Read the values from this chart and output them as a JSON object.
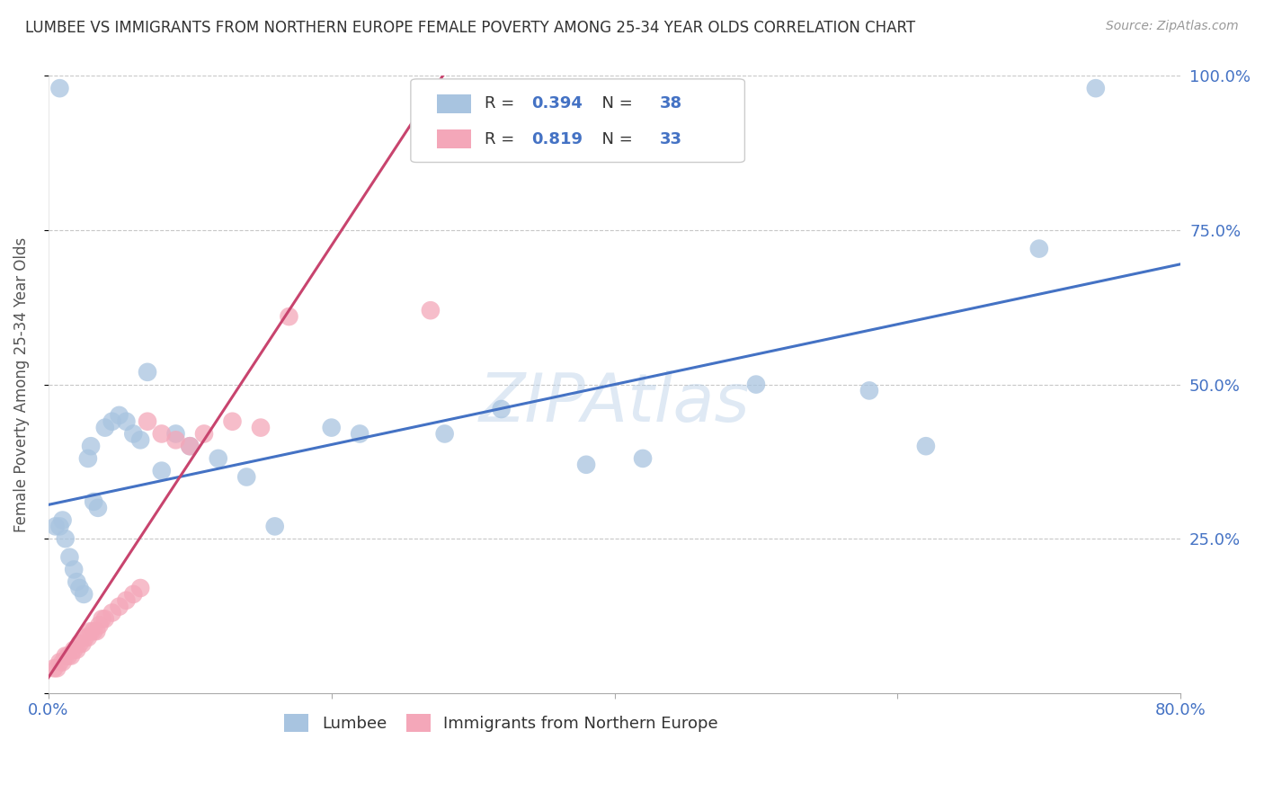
{
  "title": "LUMBEE VS IMMIGRANTS FROM NORTHERN EUROPE FEMALE POVERTY AMONG 25-34 YEAR OLDS CORRELATION CHART",
  "source": "Source: ZipAtlas.com",
  "ylabel": "Female Poverty Among 25-34 Year Olds",
  "xlim": [
    0.0,
    0.8
  ],
  "ylim": [
    0.0,
    1.0
  ],
  "xticks": [
    0.0,
    0.2,
    0.4,
    0.6,
    0.8
  ],
  "xticklabels": [
    "0.0%",
    "",
    "",
    "",
    "80.0%"
  ],
  "yticks": [
    0.0,
    0.25,
    0.5,
    0.75,
    1.0
  ],
  "yticklabels_right": [
    "",
    "25.0%",
    "50.0%",
    "75.0%",
    "100.0%"
  ],
  "series1_color": "#a8c4e0",
  "series2_color": "#f4a7b9",
  "line1_color": "#4472c4",
  "line2_color": "#c8446e",
  "background_color": "#ffffff",
  "grid_color": "#c8c8c8",
  "watermark": "ZIPAtlas",
  "lumbee_x": [
    0.005,
    0.008,
    0.01,
    0.012,
    0.015,
    0.018,
    0.02,
    0.022,
    0.025,
    0.028,
    0.03,
    0.032,
    0.035,
    0.04,
    0.045,
    0.05,
    0.055,
    0.06,
    0.065,
    0.07,
    0.08,
    0.09,
    0.1,
    0.12,
    0.14,
    0.16,
    0.2,
    0.22,
    0.28,
    0.32,
    0.38,
    0.42,
    0.5,
    0.58,
    0.62,
    0.7,
    0.008,
    0.74
  ],
  "lumbee_y": [
    0.27,
    0.27,
    0.28,
    0.25,
    0.22,
    0.2,
    0.18,
    0.17,
    0.16,
    0.38,
    0.4,
    0.31,
    0.3,
    0.43,
    0.44,
    0.45,
    0.44,
    0.42,
    0.41,
    0.52,
    0.36,
    0.42,
    0.4,
    0.38,
    0.35,
    0.27,
    0.43,
    0.42,
    0.42,
    0.46,
    0.37,
    0.38,
    0.5,
    0.49,
    0.4,
    0.72,
    0.98,
    0.98
  ],
  "immig_x": [
    0.004,
    0.006,
    0.008,
    0.01,
    0.012,
    0.014,
    0.016,
    0.018,
    0.02,
    0.022,
    0.024,
    0.026,
    0.028,
    0.03,
    0.032,
    0.034,
    0.036,
    0.038,
    0.04,
    0.045,
    0.05,
    0.055,
    0.06,
    0.065,
    0.07,
    0.08,
    0.09,
    0.1,
    0.11,
    0.13,
    0.15,
    0.17,
    0.27
  ],
  "immig_y": [
    0.04,
    0.04,
    0.05,
    0.05,
    0.06,
    0.06,
    0.06,
    0.07,
    0.07,
    0.08,
    0.08,
    0.09,
    0.09,
    0.1,
    0.1,
    0.1,
    0.11,
    0.12,
    0.12,
    0.13,
    0.14,
    0.15,
    0.16,
    0.17,
    0.44,
    0.42,
    0.41,
    0.4,
    0.42,
    0.44,
    0.43,
    0.61,
    0.62
  ],
  "blue_line": [
    0.0,
    0.8,
    0.305,
    0.695
  ],
  "pink_line_x": [
    -0.007,
    0.3
  ],
  "pink_line_slope": 3.5,
  "pink_line_intercept": 0.025
}
